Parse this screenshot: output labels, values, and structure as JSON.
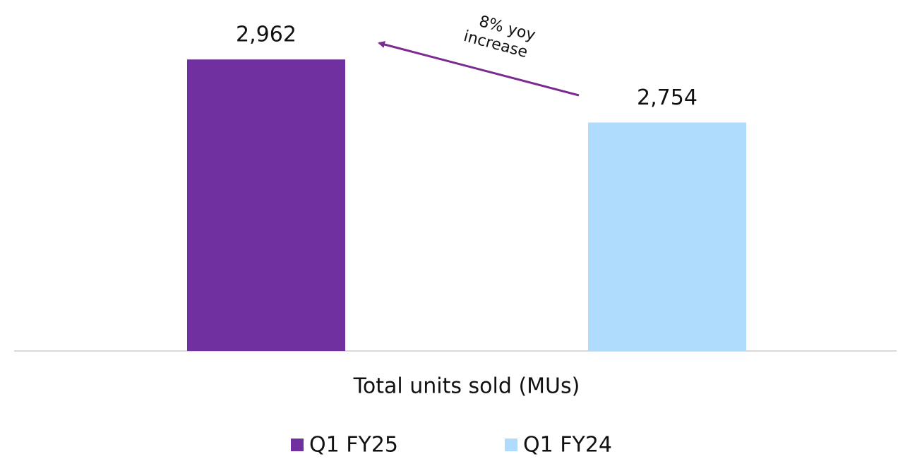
{
  "chart_data": {
    "type": "bar",
    "categories": [
      "Total units sold (MUs)"
    ],
    "series": [
      {
        "name": "Q1 FY25",
        "color": "#7030a0",
        "values": [
          2962
        ],
        "value_labels": [
          "2,962"
        ]
      },
      {
        "name": "Q1 FY24",
        "color": "#afdcfc",
        "values": [
          2754
        ],
        "value_labels": [
          "2,754"
        ]
      }
    ],
    "ylim": [
      2000,
      3100
    ],
    "annotation": [
      "8% yoy",
      "increase"
    ],
    "legend": "bottom"
  }
}
